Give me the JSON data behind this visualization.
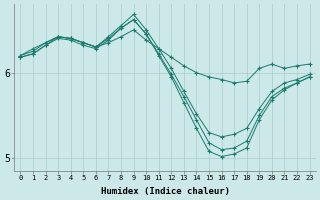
{
  "xlabel": "Humidex (Indice chaleur)",
  "bg_color": "#cce8e8",
  "line_color": "#1a7a6e",
  "grid_color": "#aacccc",
  "xlim": [
    -0.5,
    23.5
  ],
  "ylim": [
    4.85,
    6.8
  ],
  "yticks": [
    5,
    6
  ],
  "xticks": [
    0,
    1,
    2,
    3,
    4,
    5,
    6,
    7,
    8,
    9,
    10,
    11,
    12,
    13,
    14,
    15,
    16,
    17,
    18,
    19,
    20,
    21,
    22,
    23
  ],
  "lines": [
    {
      "x": [
        0,
        1,
        2,
        3,
        4,
        5,
        6,
        7,
        8,
        9,
        10,
        11,
        12,
        13,
        14,
        15,
        16,
        17,
        18,
        19,
        20,
        21,
        22,
        23
      ],
      "y": [
        6.2,
        6.28,
        6.35,
        6.42,
        6.4,
        6.35,
        6.3,
        6.35,
        6.42,
        6.5,
        6.38,
        6.28,
        6.18,
        6.08,
        6.0,
        5.95,
        5.92,
        5.88,
        5.9,
        6.05,
        6.1,
        6.05,
        6.08,
        6.1
      ]
    },
    {
      "x": [
        0,
        1,
        2,
        3,
        4,
        5,
        6,
        7,
        8,
        9,
        10,
        11,
        12,
        13,
        14,
        15,
        16,
        17,
        18,
        19,
        20,
        21,
        22,
        23
      ],
      "y": [
        6.2,
        6.25,
        6.35,
        6.42,
        6.4,
        6.35,
        6.3,
        6.42,
        6.55,
        6.68,
        6.5,
        6.28,
        6.05,
        5.78,
        5.52,
        5.3,
        5.25,
        5.28,
        5.35,
        5.58,
        5.78,
        5.88,
        5.92,
        5.98
      ]
    },
    {
      "x": [
        0,
        1,
        2,
        3,
        4,
        5,
        6,
        7,
        8,
        9,
        10,
        11,
        12,
        13,
        14,
        15,
        16,
        17,
        18,
        19,
        20,
        21,
        22,
        23
      ],
      "y": [
        6.18,
        6.22,
        6.32,
        6.4,
        6.38,
        6.32,
        6.28,
        6.38,
        6.52,
        6.62,
        6.45,
        6.22,
        5.98,
        5.72,
        5.45,
        5.18,
        5.1,
        5.12,
        5.2,
        5.5,
        5.72,
        5.82,
        5.88,
        5.95
      ]
    },
    {
      "x": [
        0,
        1,
        2,
        3,
        4,
        5,
        6,
        7,
        8,
        9,
        10,
        11,
        12,
        13,
        14,
        15,
        16,
        17,
        18,
        19,
        20,
        21,
        22,
        23
      ],
      "y": [
        6.18,
        6.22,
        6.32,
        6.42,
        6.4,
        6.35,
        6.3,
        6.4,
        6.52,
        6.62,
        6.45,
        6.2,
        5.95,
        5.65,
        5.35,
        5.08,
        5.02,
        5.05,
        5.12,
        5.45,
        5.68,
        5.8,
        5.88,
        5.95
      ]
    }
  ]
}
